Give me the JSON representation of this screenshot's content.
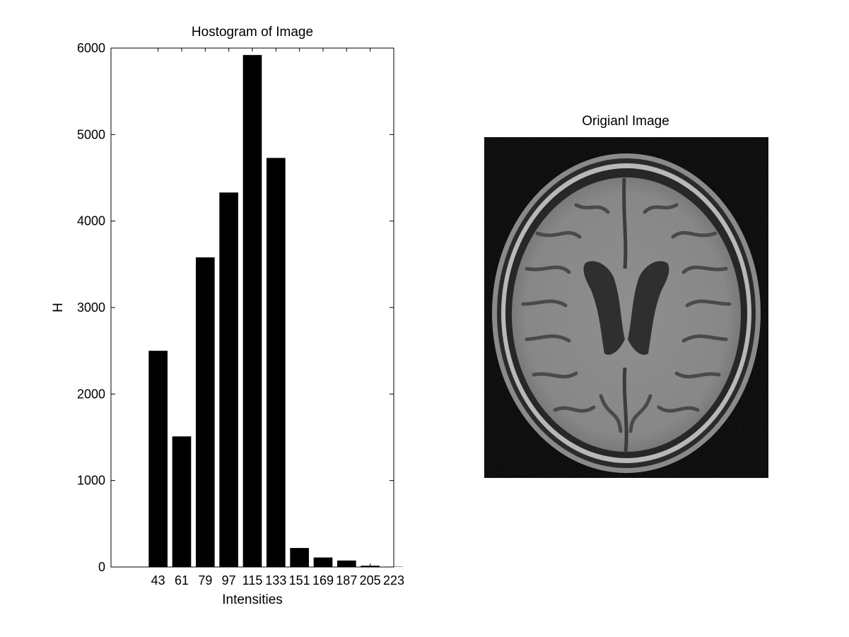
{
  "chart_data": [
    {
      "type": "bar",
      "title": "Hostogram of Image",
      "xlabel": "Intensities",
      "ylabel": "H",
      "categories": [
        "43",
        "61",
        "79",
        "97",
        "115",
        "133",
        "151",
        "169",
        "187",
        "205",
        "223"
      ],
      "values": [
        2500,
        1510,
        3580,
        4330,
        5920,
        4730,
        220,
        110,
        75,
        15,
        3
      ],
      "xlim": [
        7,
        223
      ],
      "ylim": [
        0,
        6000
      ],
      "yticks": [
        0,
        1000,
        2000,
        3000,
        4000,
        5000,
        6000
      ],
      "bar_color": "#000000",
      "grid": false
    }
  ],
  "image_panel": {
    "title": "Origianl Image",
    "content": "brain MRI scan",
    "background_color": "#101010"
  }
}
